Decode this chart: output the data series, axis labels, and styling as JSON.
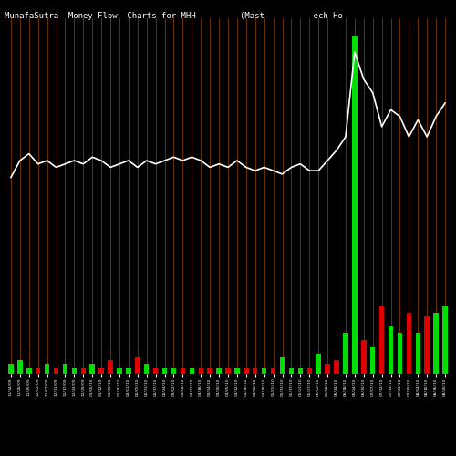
{
  "title": "MunafaSutra  Money Flow  Charts for MHH         (Mast          ech Ho",
  "bg_color": "#000000",
  "bar_color_up": "#00dd00",
  "bar_color_down": "#dd0000",
  "line_color": "#ffffff",
  "grid_color": "#7B3A00",
  "dates": [
    "11/14/09",
    "11/20/09",
    "11/25/09",
    "12/02/09",
    "12/07/09",
    "12/11/09",
    "12/17/09",
    "12/23/09",
    "12/29/09",
    "01/06/10",
    "01/12/10",
    "01/19/10",
    "01/25/10",
    "02/01/10",
    "02/05/10",
    "02/11/10",
    "02/17/10",
    "02/24/10",
    "03/02/10",
    "03/08/10",
    "03/12/10",
    "03/18/10",
    "03/24/10",
    "03/30/10",
    "04/05/10",
    "04/12/10",
    "04/16/10",
    "04/22/10",
    "04/28/10",
    "05/05/10",
    "05/11/10",
    "05/17/10",
    "05/21/10",
    "05/27/10",
    "06/02/10",
    "06/08/10",
    "06/14/10",
    "06/18/10",
    "06/24/10",
    "06/30/10",
    "07/07/10",
    "07/13/10",
    "07/19/10",
    "07/23/10",
    "07/29/10",
    "08/04/10",
    "08/10/10",
    "08/16/10",
    "08/20/10"
  ],
  "bar_values": [
    3,
    4,
    2,
    2,
    3,
    2,
    3,
    2,
    2,
    3,
    2,
    4,
    2,
    2,
    5,
    3,
    2,
    2,
    2,
    2,
    2,
    2,
    2,
    2,
    2,
    2,
    2,
    2,
    2,
    2,
    5,
    2,
    2,
    2,
    6,
    3,
    4,
    12,
    100,
    10,
    8,
    20,
    14,
    12,
    18,
    12,
    17,
    18,
    20
  ],
  "bar_colors_list": [
    "up",
    "up",
    "up",
    "down",
    "up",
    "down",
    "up",
    "up",
    "down",
    "up",
    "down",
    "down",
    "up",
    "up",
    "down",
    "up",
    "down",
    "up",
    "up",
    "down",
    "up",
    "down",
    "down",
    "up",
    "down",
    "up",
    "down",
    "down",
    "up",
    "down",
    "up",
    "up",
    "up",
    "down",
    "up",
    "down",
    "down",
    "up",
    "up",
    "down",
    "up",
    "down",
    "up",
    "up",
    "down",
    "up",
    "down",
    "up",
    "up"
  ],
  "line_values": [
    58,
    63,
    65,
    62,
    63,
    61,
    62,
    63,
    62,
    64,
    63,
    61,
    62,
    63,
    61,
    63,
    62,
    63,
    64,
    63,
    64,
    63,
    61,
    62,
    61,
    63,
    61,
    60,
    61,
    60,
    59,
    61,
    62,
    60,
    60,
    63,
    66,
    70,
    95,
    87,
    83,
    73,
    78,
    76,
    70,
    75,
    70,
    76,
    80
  ],
  "figsize": [
    5.0,
    5.0
  ],
  "dpi": 100,
  "title_fontsize": 6.5
}
